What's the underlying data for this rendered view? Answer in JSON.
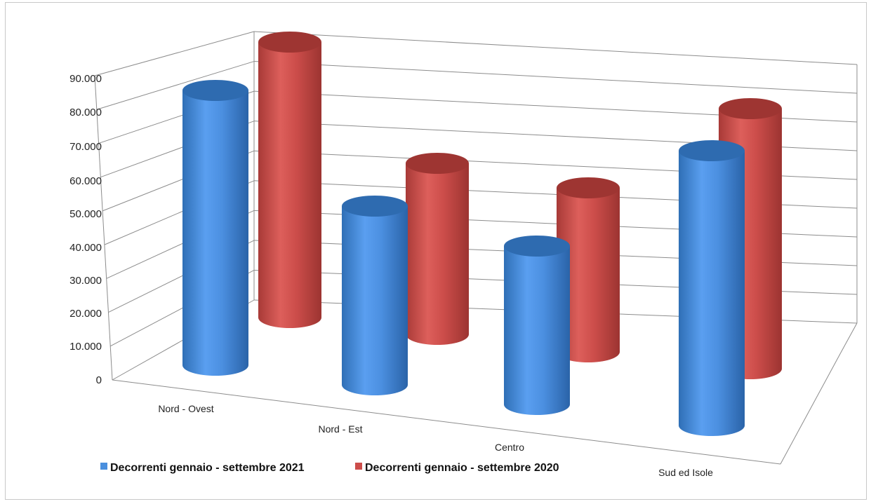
{
  "chart_data": {
    "type": "bar",
    "categories": [
      "Nord - Ovest",
      "Nord - Est",
      "Centro",
      "Sud ed Isole"
    ],
    "series": [
      {
        "name": "Decorrenti gennaio - settembre 2021",
        "values": [
          84000,
          54000,
          48000,
          82000
        ]
      },
      {
        "name": "Decorrenti gennaio - settembre 2020",
        "values": [
          84000,
          53000,
          51000,
          81000
        ]
      }
    ],
    "ylim": [
      0,
      90000
    ],
    "yticks": [
      "0",
      "10.000",
      "20.000",
      "30.000",
      "40.000",
      "50.000",
      "60.000",
      "70.000",
      "80.000",
      "90.000"
    ],
    "grid": true,
    "legend_position": "bottom-left",
    "colors": {
      "series_2021": "#4a8fde",
      "series_2020": "#cc4d4a"
    }
  }
}
